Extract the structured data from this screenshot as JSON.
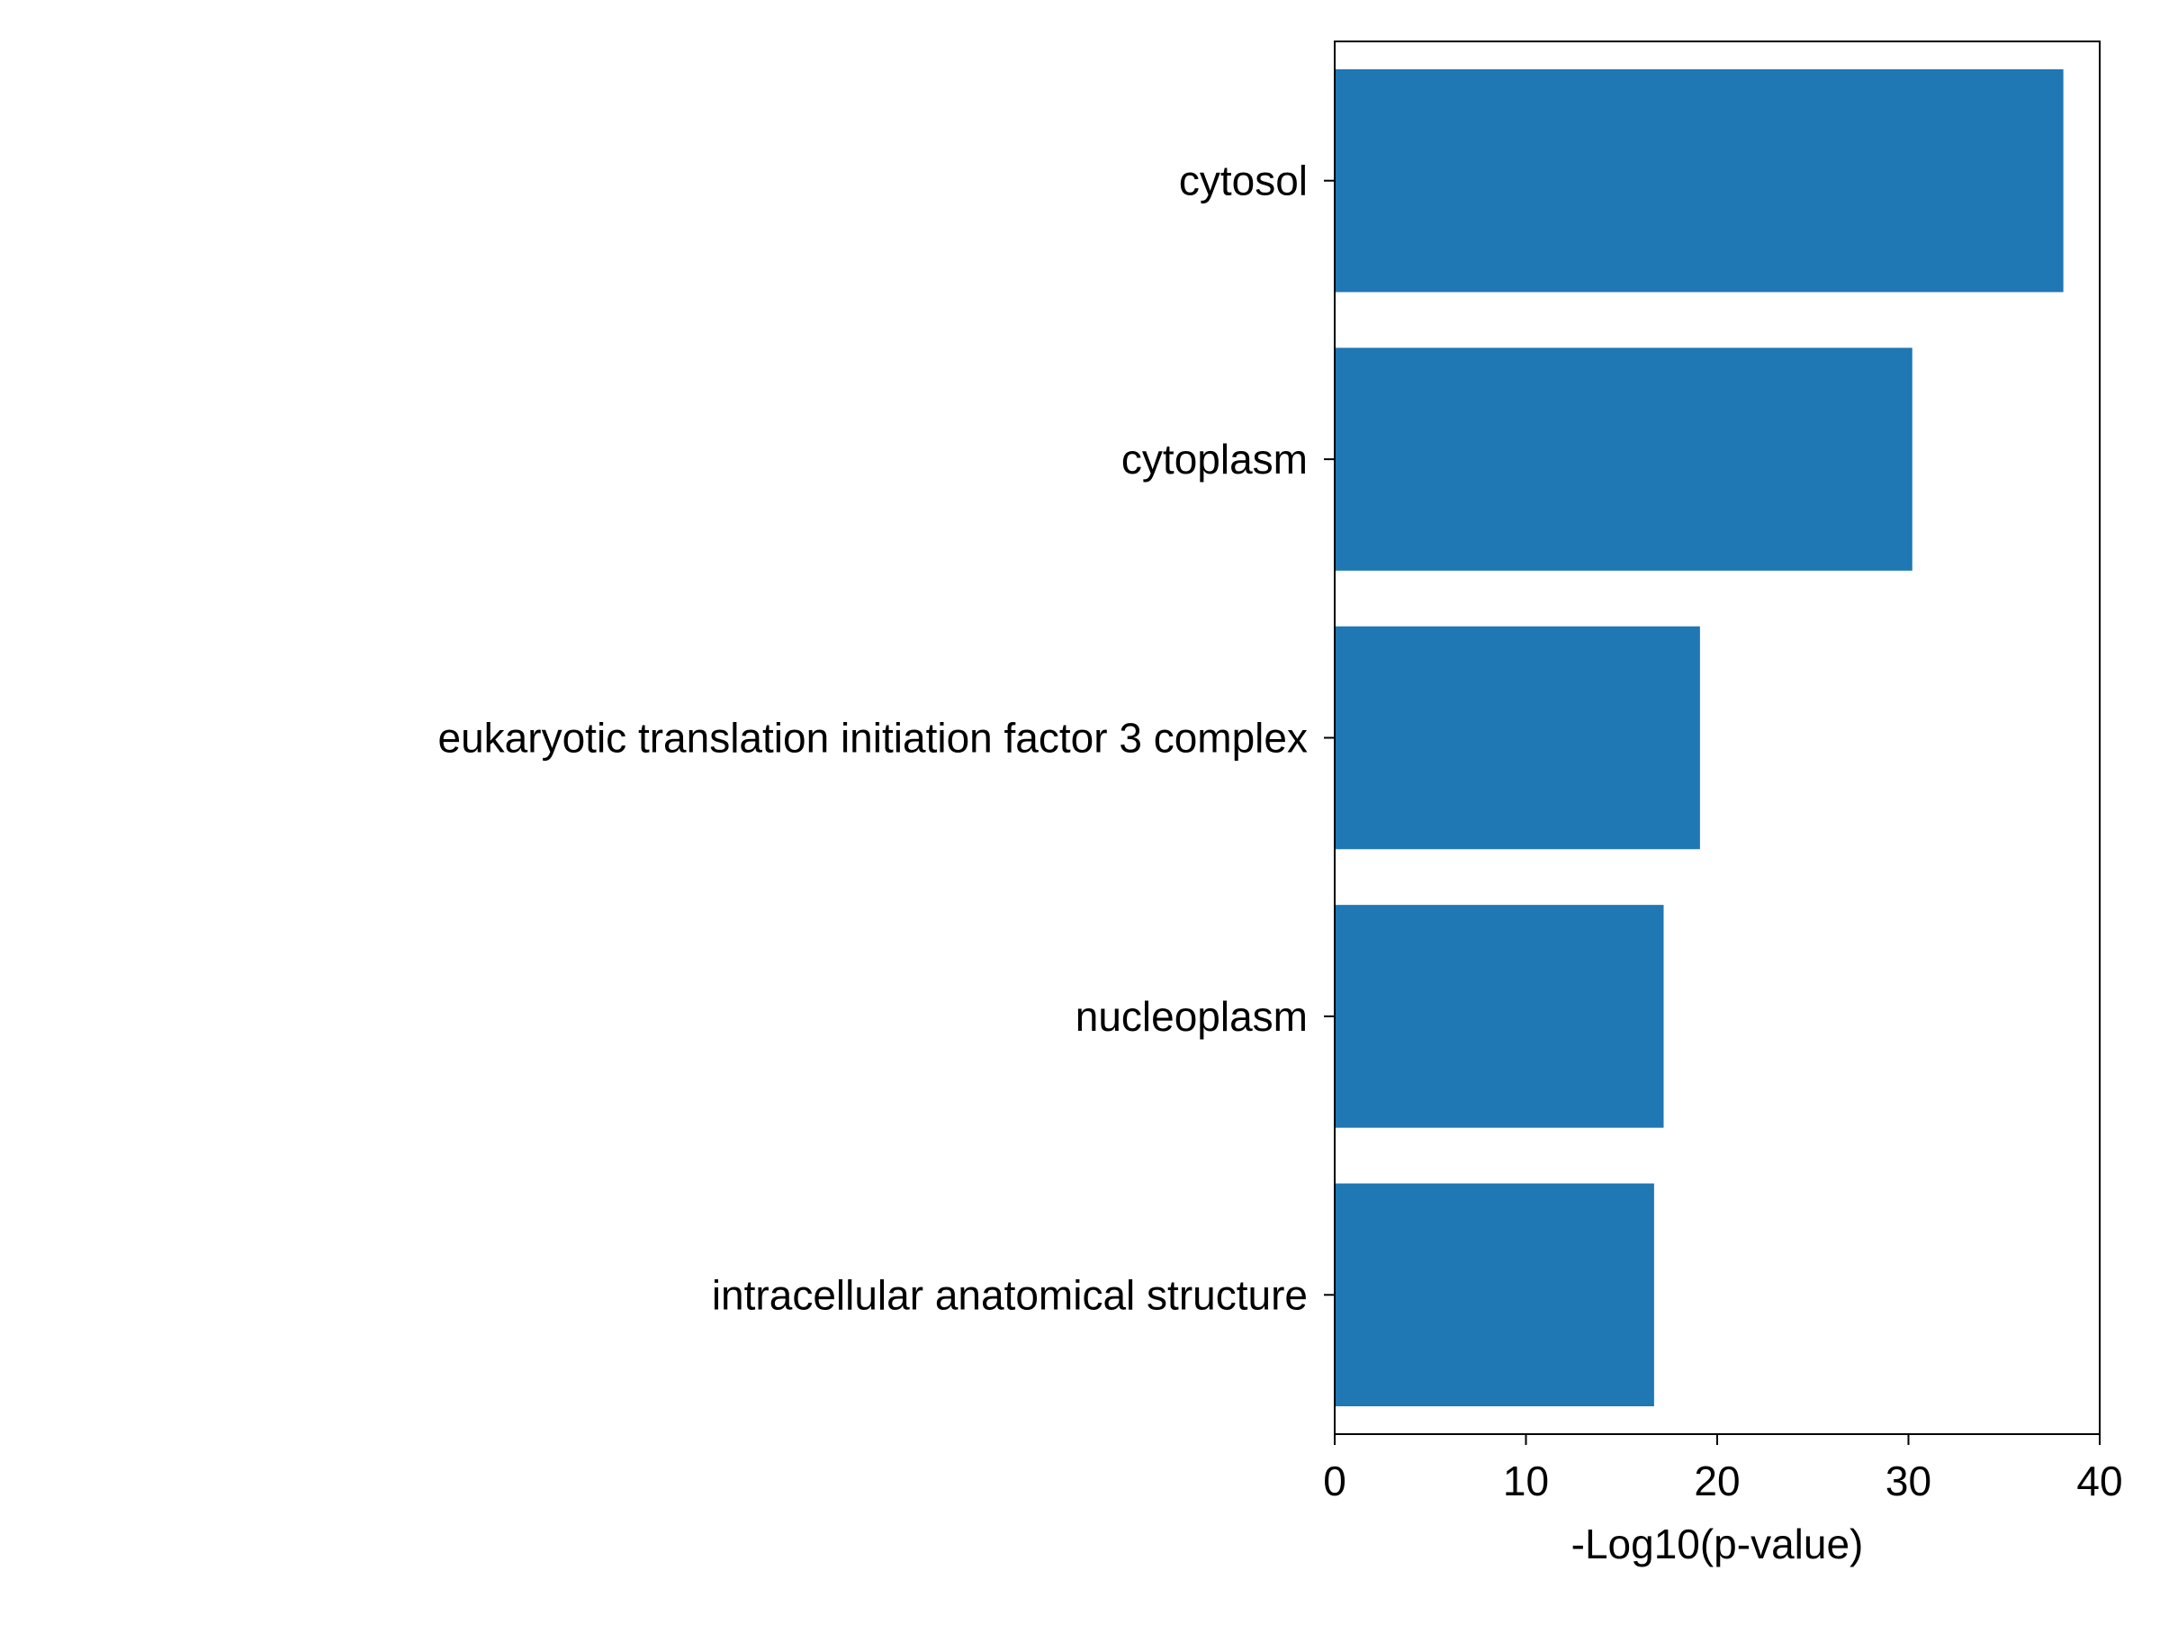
{
  "chart_data": {
    "type": "bar",
    "orientation": "horizontal",
    "categories": [
      "cytosol",
      "cytoplasm",
      "eukaryotic translation initiation factor 3 complex",
      "nucleoplasm",
      "intracellular anatomical structure"
    ],
    "values": [
      38.1,
      30.2,
      19.1,
      17.2,
      16.7
    ],
    "xlabel": "-Log10(p-value)",
    "ylabel": "",
    "title": "",
    "xlim": [
      0,
      40
    ],
    "xticks": [
      "0",
      "10",
      "20",
      "30",
      "40"
    ],
    "bar_color": "#1f77b4",
    "grid": false
  }
}
